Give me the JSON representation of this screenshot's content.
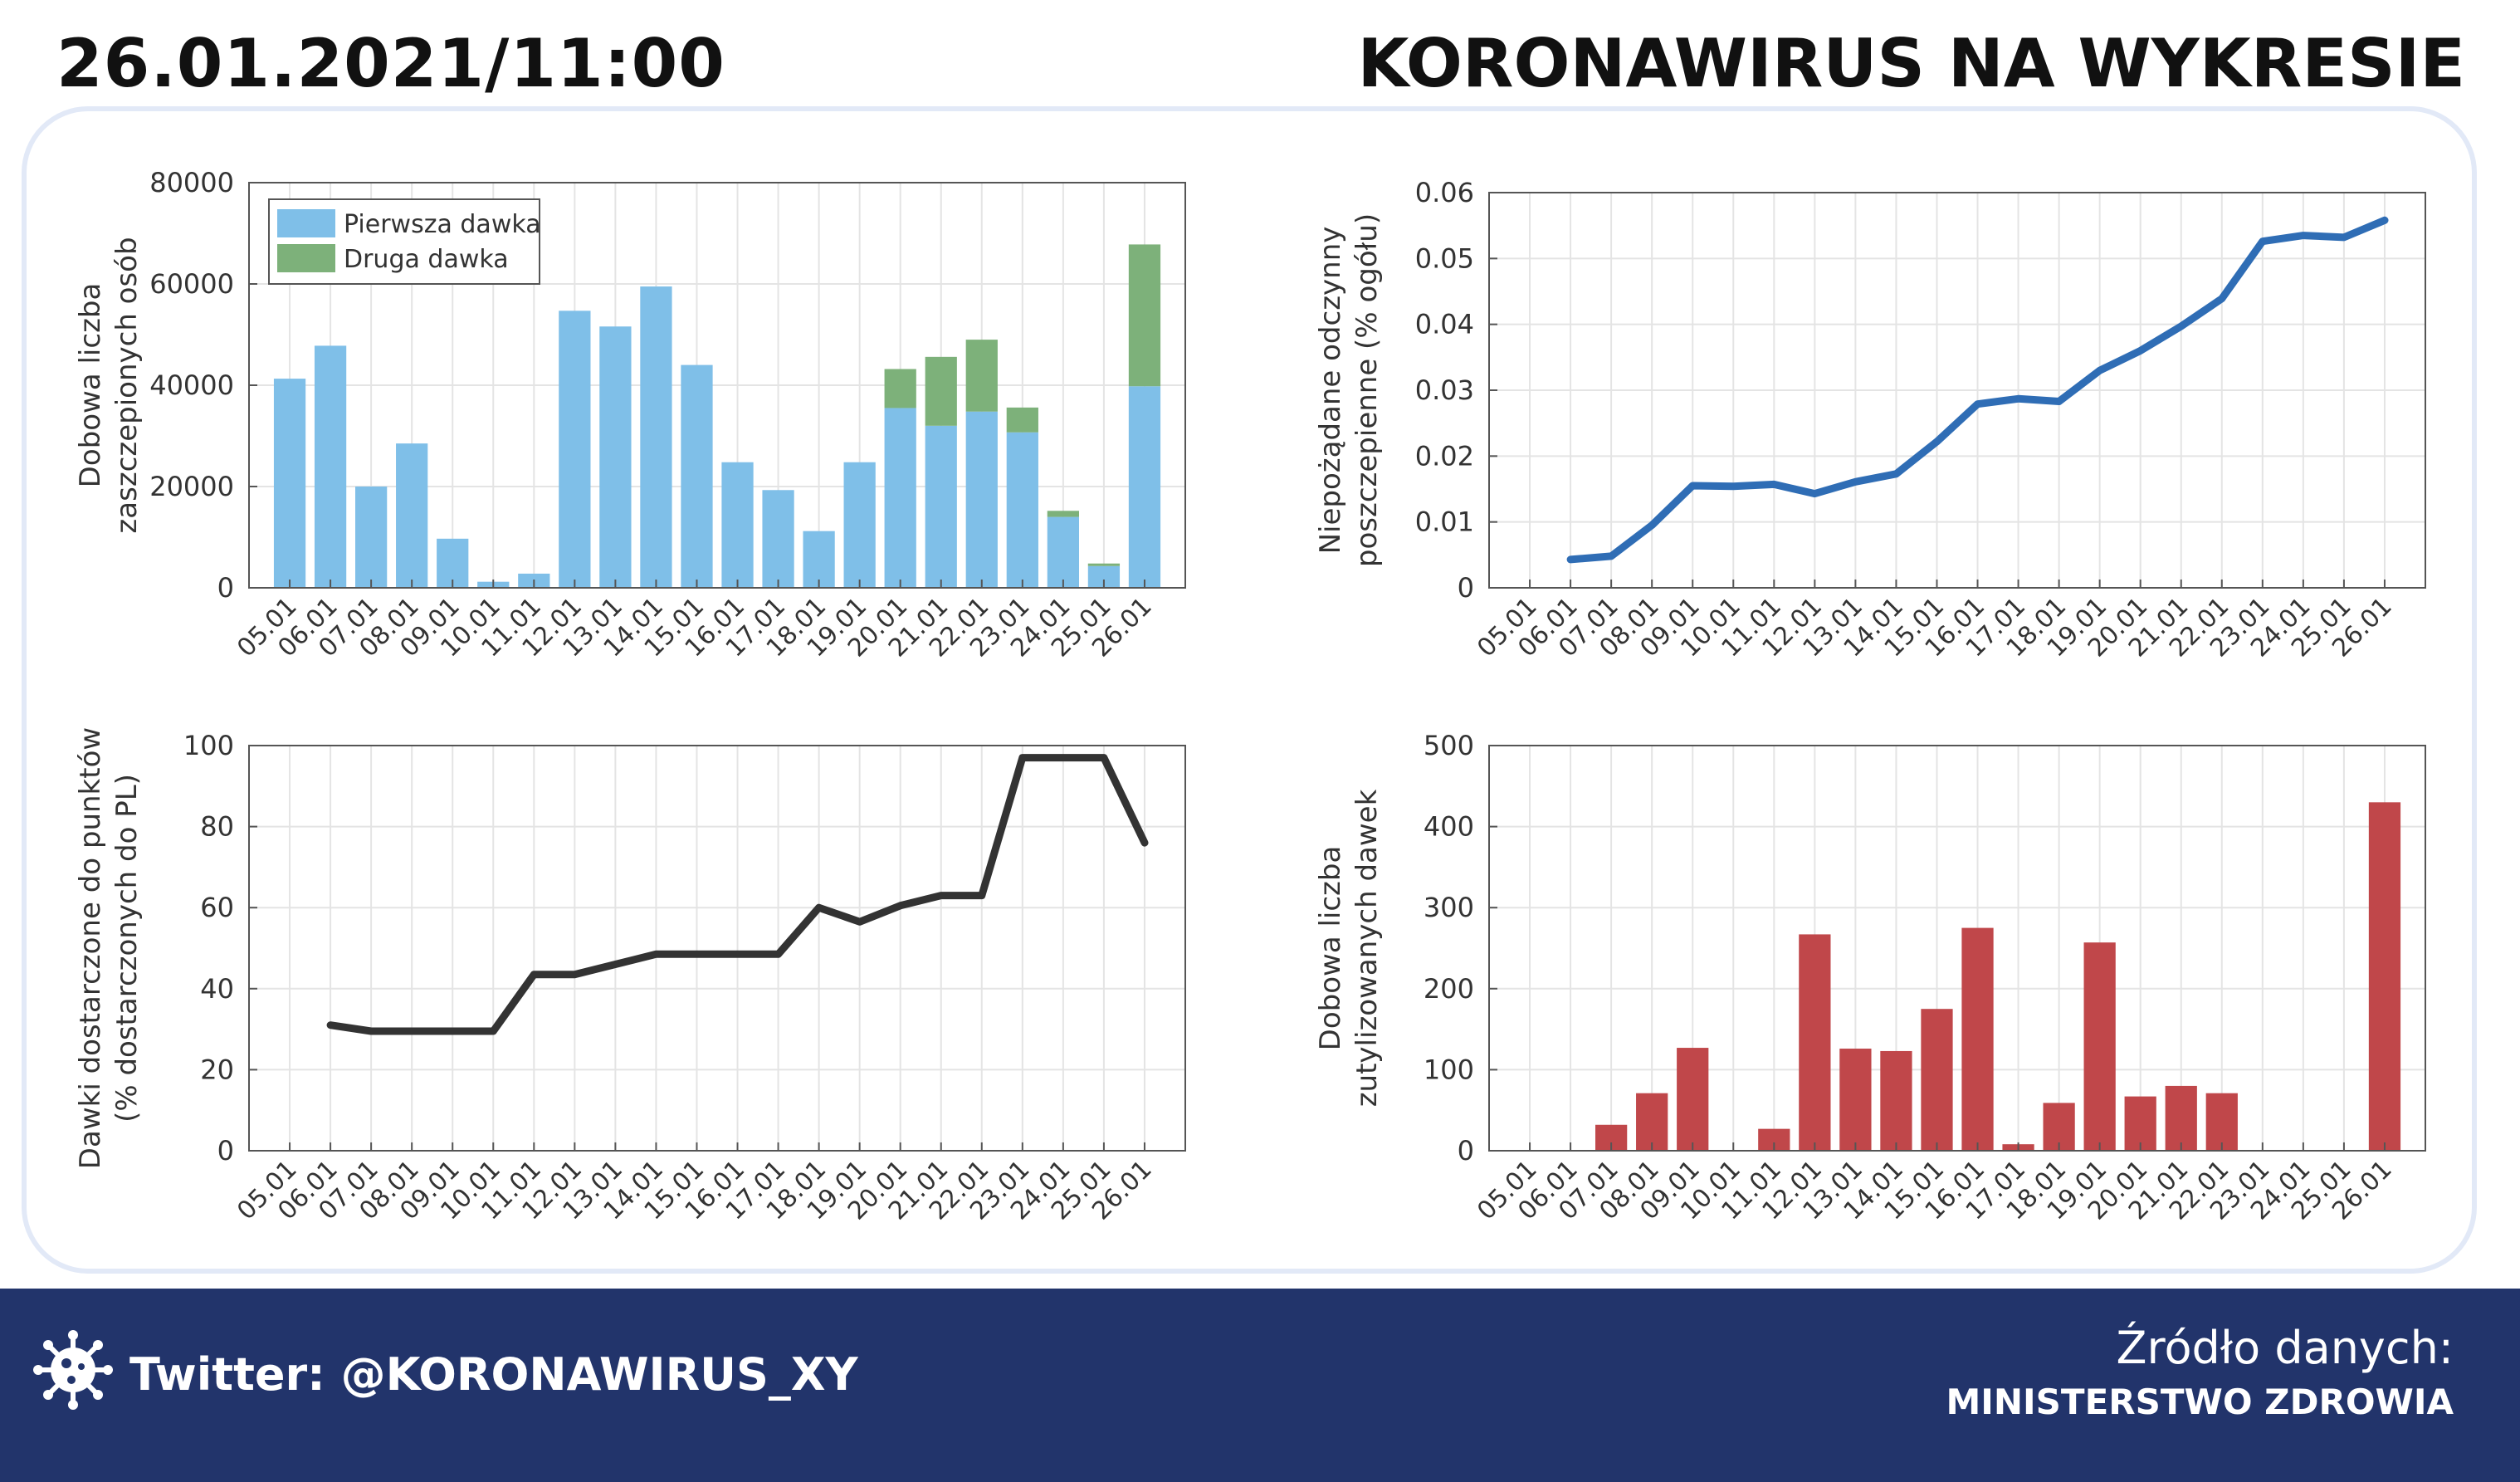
{
  "header": {
    "datetime": "26.01.2021/11:00",
    "title": "KORONAWIRUS NA WYKRESIE"
  },
  "footer": {
    "twitter": "Twitter: @KORONAWIRUS_XY",
    "source_label": "Źródło danych:",
    "source_name": "MINISTERSTWO ZDROWIA",
    "icon": "virus-icon"
  },
  "chart_data": [
    {
      "type": "bar",
      "stacked": true,
      "ylabel": [
        "Dobowa liczba",
        "zaszczepionych osób"
      ],
      "ylim": [
        0,
        80000
      ],
      "yticks": [
        0,
        20000,
        40000,
        60000,
        80000
      ],
      "categories": [
        "05.01",
        "06.01",
        "07.01",
        "08.01",
        "09.01",
        "10.01",
        "11.01",
        "12.01",
        "13.01",
        "14.01",
        "15.01",
        "16.01",
        "17.01",
        "18.01",
        "19.01",
        "20.01",
        "21.01",
        "22.01",
        "23.01",
        "24.01",
        "25.01",
        "26.01"
      ],
      "series": [
        {
          "name": "Pierwsza dawka",
          "color": "#7fbfe8",
          "values": [
            41300,
            47800,
            20000,
            28500,
            9700,
            1200,
            2800,
            54700,
            51600,
            59500,
            44000,
            24800,
            19300,
            11200,
            24800,
            35500,
            32000,
            34800,
            30700,
            14000,
            4300,
            39800
          ]
        },
        {
          "name": "Druga dawka",
          "color": "#7db17a",
          "values": [
            0,
            0,
            0,
            0,
            0,
            0,
            0,
            0,
            0,
            0,
            0,
            0,
            0,
            0,
            0,
            7700,
            13600,
            14200,
            4900,
            1200,
            500,
            28000
          ]
        }
      ],
      "legend": "top-left",
      "grid": true
    },
    {
      "type": "line",
      "ylabel": [
        "Niepożądane odczynny",
        "poszczepienne (% ogółu)"
      ],
      "ylim": [
        0,
        0.06
      ],
      "yticks": [
        "0",
        "0.01",
        "0.02",
        "0.03",
        "0.04",
        "0.05",
        "0.06"
      ],
      "categories": [
        "05.01",
        "06.01",
        "07.01",
        "08.01",
        "09.01",
        "10.01",
        "11.01",
        "12.01",
        "13.01",
        "14.01",
        "15.01",
        "16.01",
        "17.01",
        "18.01",
        "19.01",
        "20.01",
        "21.01",
        "22.01",
        "23.01",
        "24.01",
        "25.01",
        "26.01"
      ],
      "series": [
        {
          "color": "#2f6db5",
          "values": [
            null,
            0.0043,
            0.0048,
            0.0095,
            0.0155,
            0.0154,
            0.0157,
            0.0143,
            0.0161,
            0.0173,
            0.0222,
            0.0279,
            0.0287,
            0.0283,
            0.033,
            0.036,
            0.0397,
            0.0439,
            0.0526,
            0.0535,
            0.0532,
            0.0558
          ]
        }
      ],
      "grid": true
    },
    {
      "type": "line",
      "ylabel": [
        "Dawki dostarczone do punktów",
        "(% dostarczonych do PL)"
      ],
      "ylim": [
        0,
        100
      ],
      "yticks": [
        "0",
        "20",
        "40",
        "60",
        "80",
        "100"
      ],
      "categories": [
        "05.01",
        "06.01",
        "07.01",
        "08.01",
        "09.01",
        "10.01",
        "11.01",
        "12.01",
        "13.01",
        "14.01",
        "15.01",
        "16.01",
        "17.01",
        "18.01",
        "19.01",
        "20.01",
        "21.01",
        "22.01",
        "23.01",
        "24.01",
        "25.01",
        "26.01"
      ],
      "series": [
        {
          "color": "#333333",
          "values": [
            null,
            31,
            29.5,
            29.5,
            29.5,
            29.5,
            43.5,
            43.5,
            46,
            48.5,
            48.5,
            48.5,
            48.5,
            60,
            56.5,
            60.5,
            63,
            63,
            97,
            97,
            97,
            76
          ]
        }
      ],
      "grid": true
    },
    {
      "type": "bar",
      "ylabel": [
        "Dobowa liczba",
        "zutylizowanych dawek"
      ],
      "ylim": [
        0,
        500
      ],
      "yticks": [
        "0",
        "100",
        "200",
        "300",
        "400",
        "500"
      ],
      "categories": [
        "05.01",
        "06.01",
        "07.01",
        "08.01",
        "09.01",
        "10.01",
        "11.01",
        "12.01",
        "13.01",
        "14.01",
        "15.01",
        "16.01",
        "17.01",
        "18.01",
        "19.01",
        "20.01",
        "21.01",
        "22.01",
        "23.01",
        "24.01",
        "25.01",
        "26.01"
      ],
      "series": [
        {
          "color": "#c0474a",
          "values": [
            0,
            0,
            32,
            71,
            127,
            0,
            27,
            267,
            126,
            123,
            175,
            275,
            8,
            59,
            257,
            67,
            80,
            71,
            0,
            0,
            0,
            430
          ]
        }
      ],
      "grid": true
    }
  ]
}
